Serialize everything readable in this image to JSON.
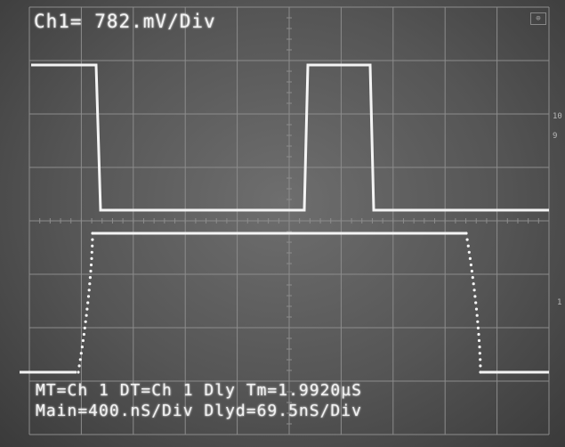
{
  "readouts": {
    "channel_scale": "Ch1= 782.mV/Div",
    "trigger_info": "MT=Ch 1 DT=Ch 1 Dly Tm=1.9920µS",
    "timebase": "Main=400.nS/Div Dlyd=69.5nS/Div"
  },
  "corner_indicator": "⊕",
  "edge_marks": [
    "10",
    "9",
    "1"
  ],
  "colors": {
    "screen": "#5a5a5a",
    "grid": "#8c8c8c",
    "trace": "#f4f4f4"
  }
}
